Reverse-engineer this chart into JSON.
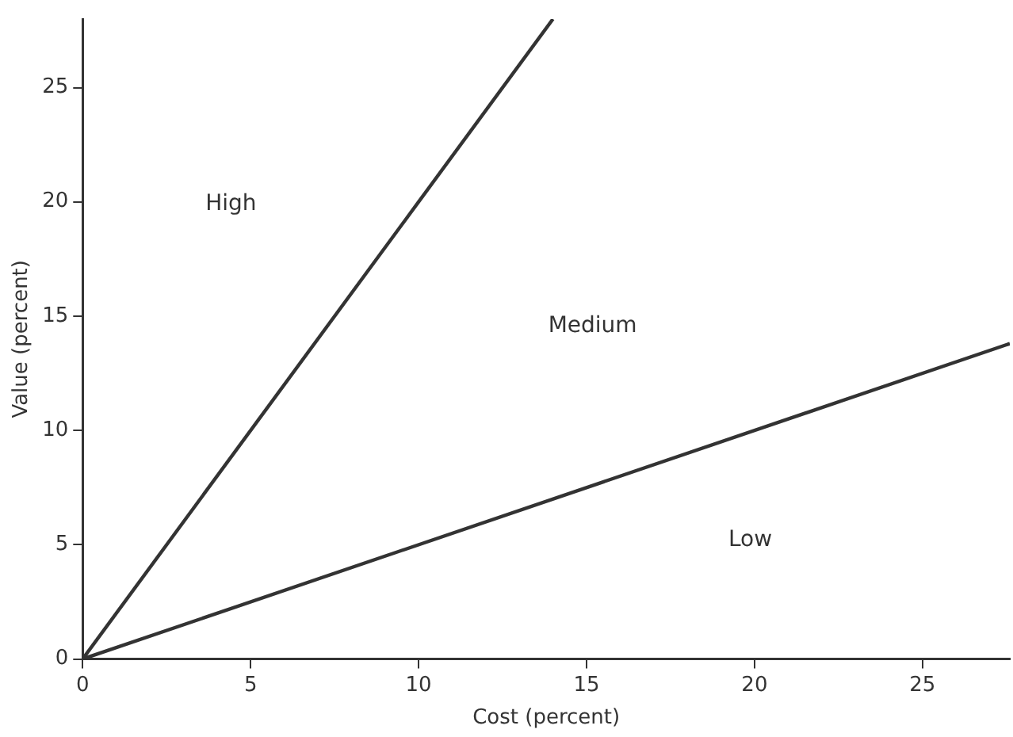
{
  "chart_data": {
    "type": "line",
    "xlabel": "Cost (percent)",
    "ylabel": "Value (percent)",
    "xlim": [
      0,
      27.6
    ],
    "ylim": [
      0,
      28
    ],
    "xticks": [
      0,
      5,
      10,
      15,
      20,
      25
    ],
    "yticks": [
      0,
      5,
      10,
      15,
      20,
      25
    ],
    "grid": false,
    "legend": false,
    "marker": "none",
    "line_style": "solid",
    "series": [
      {
        "color": "#333333",
        "x": [
          0,
          14
        ],
        "values": [
          0,
          28
        ]
      },
      {
        "color": "#333333",
        "x": [
          0,
          27.6
        ],
        "values": [
          0,
          13.8
        ]
      }
    ],
    "annotations": [
      "High",
      "Medium",
      "Low"
    ]
  }
}
